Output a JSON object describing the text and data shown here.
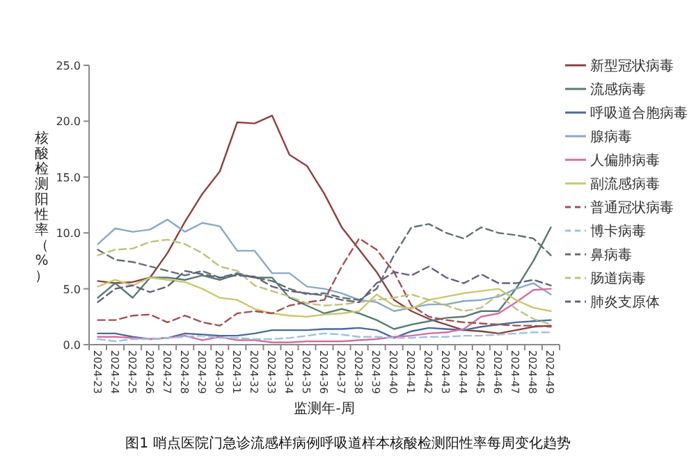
{
  "chart_data": {
    "type": "line",
    "ylabel": "核酸检测阳性率（%）",
    "xlabel": "监测年-周",
    "annotations": [
      "图1 哨点医院门急诊流感样病例呼吸道样本核酸检测阳性率每周变化趋势"
    ],
    "categories": [
      "2024-23",
      "2024-24",
      "2024-25",
      "2024-26",
      "2024-27",
      "2024-28",
      "2024-29",
      "2024-30",
      "2024-31",
      "2024-32",
      "2024-33",
      "2024-34",
      "2024-35",
      "2024-36",
      "2024-37",
      "2024-38",
      "2024-39",
      "2024-40",
      "2024-41",
      "2024-42",
      "2024-43",
      "2024-44",
      "2024-45",
      "2024-46",
      "2024-47",
      "2024-48",
      "2024-49"
    ],
    "ylim": [
      0,
      25
    ],
    "yticks": [
      {
        "value": 0,
        "label": "0.0"
      },
      {
        "value": 5,
        "label": "5.0"
      },
      {
        "value": 10,
        "label": "10.0"
      },
      {
        "value": 15,
        "label": "15.0"
      },
      {
        "value": 20,
        "label": "20.0"
      },
      {
        "value": 25,
        "label": "25.0"
      }
    ],
    "grid": false,
    "legend": "right",
    "marker": "none",
    "series": [
      {
        "name": "新型冠状病毒",
        "color": "#8b4040",
        "line_style": "solid",
        "values": [
          5.7,
          5.5,
          5.6,
          6.0,
          8.2,
          11.0,
          13.5,
          15.5,
          19.9,
          19.8,
          20.5,
          17.0,
          16.0,
          13.5,
          10.5,
          8.5,
          6.5,
          4.0,
          3.0,
          2.3,
          1.8,
          1.3,
          1.2,
          1.0,
          1.3,
          1.6,
          1.7
        ]
      },
      {
        "name": "流感病毒",
        "color": "#5a7a70",
        "line_style": "solid",
        "values": [
          4.2,
          5.5,
          4.2,
          6.0,
          6.0,
          5.8,
          6.2,
          5.8,
          6.3,
          6.0,
          6.0,
          4.2,
          3.5,
          2.8,
          3.2,
          2.8,
          2.2,
          1.4,
          1.8,
          2.1,
          2.4,
          2.5,
          3.0,
          3.0,
          5.0,
          7.5,
          10.5
        ]
      },
      {
        "name": "呼吸道合胞病毒",
        "color": "#4a6a9a",
        "line_style": "solid",
        "values": [
          1.0,
          1.0,
          0.7,
          0.5,
          0.6,
          1.0,
          0.9,
          0.8,
          0.8,
          1.0,
          1.3,
          1.3,
          1.3,
          1.4,
          1.4,
          1.5,
          1.3,
          0.6,
          1.2,
          1.5,
          1.4,
          1.3,
          1.6,
          1.8,
          2.0,
          2.1,
          2.2
        ]
      },
      {
        "name": "腺病毒",
        "color": "#8aa8c8",
        "line_style": "solid",
        "values": [
          9.0,
          10.4,
          10.1,
          10.3,
          11.2,
          10.1,
          10.9,
          10.6,
          8.4,
          8.4,
          6.4,
          6.4,
          5.2,
          5.0,
          4.6,
          4.0,
          3.8,
          3.0,
          3.3,
          3.6,
          3.6,
          3.9,
          4.0,
          4.3,
          5.0,
          5.5,
          4.5
        ]
      },
      {
        "name": "人偏肺病毒",
        "color": "#d070a0",
        "line_style": "solid",
        "values": [
          0.7,
          0.7,
          0.6,
          0.5,
          0.6,
          0.8,
          0.4,
          0.7,
          0.4,
          0.4,
          0.2,
          0.2,
          0.3,
          0.3,
          0.3,
          0.4,
          0.5,
          0.7,
          0.8,
          1.0,
          1.1,
          1.4,
          2.5,
          2.8,
          3.8,
          4.9,
          5.0
        ]
      },
      {
        "name": "副流感病毒",
        "color": "#c8c870",
        "line_style": "solid",
        "values": [
          5.2,
          5.8,
          5.3,
          6.0,
          5.8,
          5.6,
          5.0,
          4.2,
          4.0,
          3.2,
          2.8,
          2.6,
          2.5,
          2.7,
          2.8,
          3.0,
          4.5,
          3.5,
          3.2,
          4.0,
          4.3,
          4.6,
          4.8,
          5.0,
          4.0,
          3.3,
          3.0
        ]
      },
      {
        "name": "普通冠状病毒",
        "color": "#a05050",
        "line_style": "dashed",
        "values": [
          2.2,
          2.2,
          2.6,
          2.7,
          2.0,
          2.6,
          2.0,
          1.7,
          2.8,
          3.0,
          2.8,
          3.5,
          3.8,
          4.0,
          7.0,
          9.5,
          8.5,
          6.5,
          3.5,
          2.5,
          2.2,
          2.0,
          1.9,
          1.8,
          1.7,
          1.7,
          1.6
        ]
      },
      {
        "name": "博卡病毒",
        "color": "#a0c0e0",
        "line_style": "dashed",
        "values": [
          0.5,
          0.3,
          0.5,
          0.5,
          0.6,
          0.7,
          0.8,
          0.6,
          0.6,
          0.5,
          0.5,
          0.6,
          0.8,
          1.0,
          0.9,
          0.7,
          0.7,
          0.6,
          0.6,
          0.7,
          0.7,
          0.8,
          0.8,
          0.9,
          1.0,
          1.1,
          1.1
        ]
      },
      {
        "name": "鼻病毒",
        "color": "#607070",
        "line_style": "dashed",
        "values": [
          8.5,
          7.6,
          7.4,
          7.0,
          6.6,
          6.2,
          6.6,
          6.0,
          6.4,
          6.0,
          5.7,
          5.0,
          4.5,
          4.6,
          4.2,
          4.0,
          5.0,
          8.0,
          10.5,
          10.8,
          10.0,
          9.5,
          10.5,
          10.0,
          9.8,
          9.5,
          8.0
        ]
      },
      {
        "name": "肠道病毒",
        "color": "#c0c080",
        "line_style": "dashed",
        "values": [
          8.0,
          8.5,
          8.6,
          9.2,
          9.4,
          9.0,
          8.2,
          7.0,
          6.6,
          5.3,
          4.8,
          4.3,
          3.7,
          3.5,
          3.6,
          3.8,
          4.0,
          4.2,
          4.5,
          4.0,
          3.5,
          3.0,
          3.3,
          4.5,
          3.2,
          2.3,
          1.8
        ]
      },
      {
        "name": "肺炎支原体",
        "color": "#606080",
        "line_style": "dashed",
        "values": [
          3.8,
          5.0,
          5.3,
          4.7,
          5.2,
          6.6,
          6.3,
          6.0,
          6.2,
          6.1,
          5.2,
          4.8,
          4.6,
          4.4,
          4.0,
          3.8,
          5.5,
          6.5,
          6.2,
          7.0,
          6.0,
          5.5,
          6.3,
          5.5,
          5.5,
          5.8,
          5.3
        ]
      }
    ]
  }
}
